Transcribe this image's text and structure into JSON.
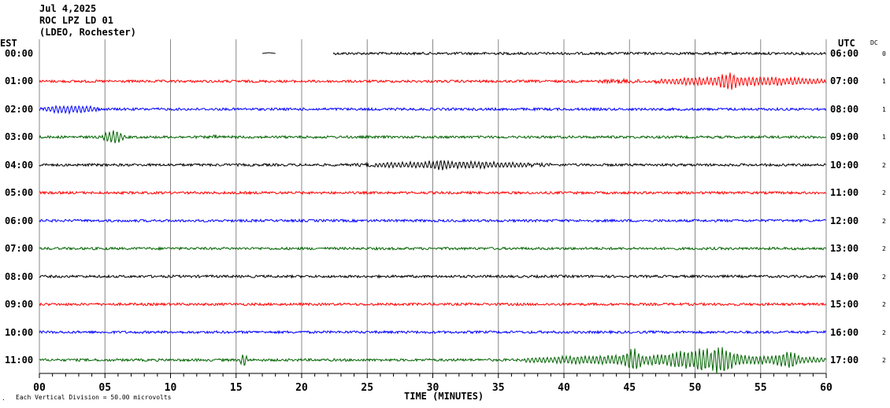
{
  "header": {
    "date": "Jul 4,2025",
    "station": "ROC LPZ LD 01",
    "network": "(LDEO, Rochester)"
  },
  "left_tz": "EST",
  "right_tz": "UTC",
  "dc_label": "DC",
  "footer": {
    "scale_note": "Each Vertical Division =   50.00 microvolts",
    "x_title": "TIME (MINUTES)",
    "corner_mark": "."
  },
  "colors": [
    "#000000",
    "#ff0000",
    "#0000ff",
    "#006400"
  ],
  "chart_data": {
    "type": "line",
    "title": "Jul 4,2025 ROC LPZ LD 01 (LDEO, Rochester)",
    "xlabel": "TIME (MINUTES)",
    "xlim": [
      0,
      60
    ],
    "xticks": [
      "00",
      "05",
      "10",
      "15",
      "20",
      "25",
      "30",
      "35",
      "40",
      "45",
      "50",
      "55",
      "60"
    ],
    "grid": true,
    "rows": [
      {
        "est": "00:00",
        "utc": "06:00",
        "dc": "0",
        "start": 22.4,
        "events": []
      },
      {
        "est": "01:00",
        "utc": "07:00",
        "dc": "1",
        "start": 0,
        "events": [
          [
            42,
            47,
            3
          ],
          [
            47,
            60,
            7
          ],
          [
            51.5,
            53.5,
            12
          ]
        ]
      },
      {
        "est": "02:00",
        "utc": "08:00",
        "dc": "1",
        "start": 0,
        "events": [
          [
            0,
            4.6,
            6
          ]
        ]
      },
      {
        "est": "03:00",
        "utc": "09:00",
        "dc": "1",
        "start": 0,
        "events": [
          [
            4.8,
            6.5,
            9
          ],
          [
            13,
            14,
            3
          ]
        ]
      },
      {
        "est": "04:00",
        "utc": "10:00",
        "dc": "2",
        "start": 0,
        "events": [
          [
            24,
            39,
            5
          ],
          [
            29,
            32,
            7
          ]
        ]
      },
      {
        "est": "05:00",
        "utc": "11:00",
        "dc": "2",
        "start": 0,
        "events": []
      },
      {
        "est": "06:00",
        "utc": "12:00",
        "dc": "2",
        "start": 0,
        "events": []
      },
      {
        "est": "07:00",
        "utc": "13:00",
        "dc": "2",
        "start": 0,
        "events": []
      },
      {
        "est": "08:00",
        "utc": "14:00",
        "dc": "2",
        "start": 0,
        "events": []
      },
      {
        "est": "09:00",
        "utc": "15:00",
        "dc": "2",
        "start": 0,
        "events": []
      },
      {
        "est": "10:00",
        "utc": "16:00",
        "dc": "2",
        "start": 0,
        "events": []
      },
      {
        "est": "11:00",
        "utc": "17:00",
        "dc": "2",
        "start": 0,
        "events": [
          [
            15.3,
            15.9,
            9
          ],
          [
            37,
            60,
            8
          ],
          [
            44.5,
            46,
            16
          ],
          [
            47.5,
            54,
            16
          ],
          [
            51,
            53,
            20
          ],
          [
            56,
            58,
            12
          ]
        ]
      }
    ]
  }
}
